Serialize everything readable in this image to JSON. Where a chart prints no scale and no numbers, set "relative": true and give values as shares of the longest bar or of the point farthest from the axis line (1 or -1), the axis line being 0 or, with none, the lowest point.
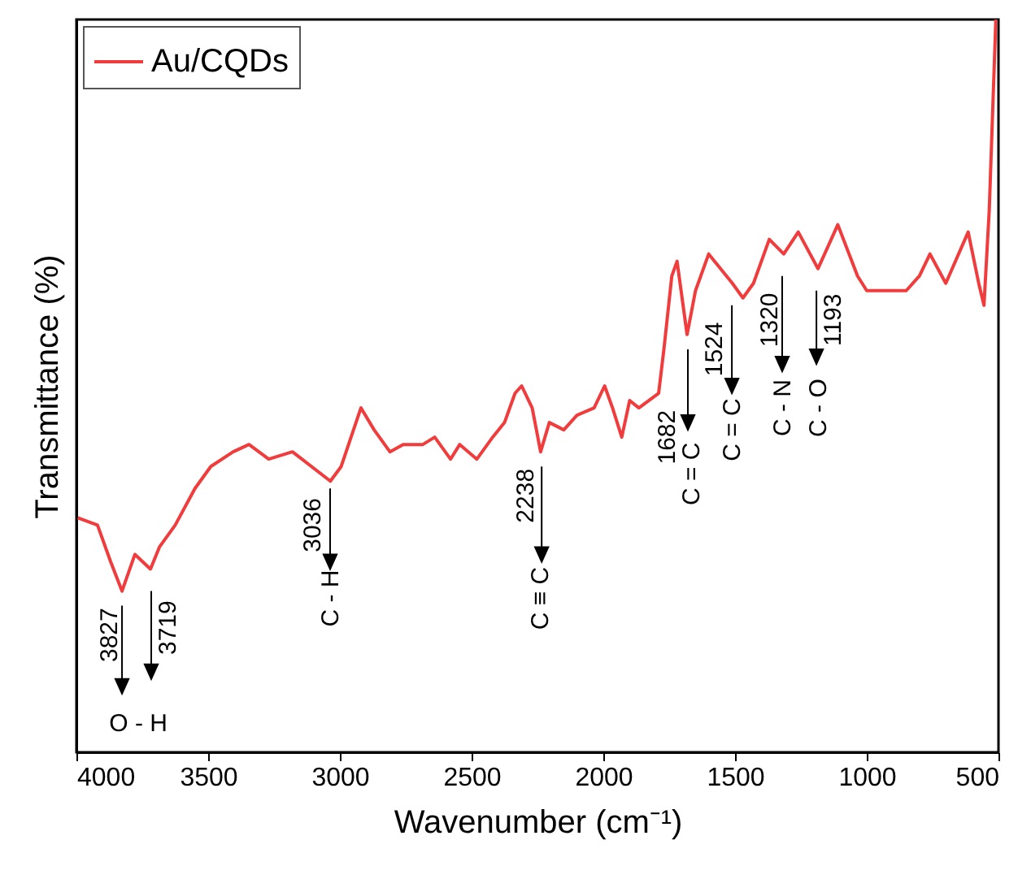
{
  "chart_data": {
    "type": "line",
    "xlabel": "Wavenumber (cm⁻¹)",
    "ylabel": "Transmittance (%)",
    "relative": true,
    "xlim": [
      4000,
      500
    ],
    "xticks": [
      4000,
      3500,
      3000,
      2500,
      2000,
      1500,
      1000,
      500
    ],
    "annotations": [
      "3827",
      "3719",
      "O - H",
      "3036",
      "C - H",
      "2238",
      "C ≡ C",
      "1682",
      "C = C",
      "1524",
      "C = C",
      "1320",
      "C - N",
      "1193",
      "C - O"
    ],
    "legend": "top left",
    "grid": false,
    "marker": "none",
    "line_style": "solid",
    "series": [
      {
        "name": "Au/CQDs",
        "color": "#f03c3c",
        "x": [
          3995,
          3920,
          3870,
          3827,
          3778,
          3719,
          3685,
          3625,
          3550,
          3490,
          3405,
          3345,
          3270,
          3180,
          3036,
          2995,
          2920,
          2870,
          2810,
          2760,
          2685,
          2640,
          2580,
          2545,
          2480,
          2420,
          2375,
          2335,
          2310,
          2270,
          2238,
          2205,
          2150,
          2100,
          2035,
          1995,
          1965,
          1930,
          1900,
          1865,
          1790,
          1770,
          1740,
          1720,
          1682,
          1650,
          1600,
          1555,
          1510,
          1470,
          1430,
          1370,
          1315,
          1260,
          1185,
          1110,
          1035,
          1000,
          915,
          850,
          800,
          760,
          700,
          615,
          575,
          555,
          535,
          510
        ],
        "values": [
          0.32,
          0.31,
          0.26,
          0.22,
          0.27,
          0.25,
          0.28,
          0.31,
          0.36,
          0.39,
          0.41,
          0.42,
          0.4,
          0.41,
          0.37,
          0.39,
          0.47,
          0.44,
          0.41,
          0.42,
          0.42,
          0.43,
          0.4,
          0.42,
          0.4,
          0.43,
          0.45,
          0.49,
          0.5,
          0.47,
          0.41,
          0.45,
          0.44,
          0.46,
          0.47,
          0.5,
          0.47,
          0.43,
          0.48,
          0.47,
          0.49,
          0.55,
          0.65,
          0.67,
          0.57,
          0.63,
          0.68,
          0.66,
          0.64,
          0.62,
          0.64,
          0.7,
          0.68,
          0.71,
          0.66,
          0.72,
          0.65,
          0.63,
          0.63,
          0.63,
          0.65,
          0.68,
          0.64,
          0.71,
          0.64,
          0.61,
          0.74,
          1.0
        ]
      }
    ]
  }
}
